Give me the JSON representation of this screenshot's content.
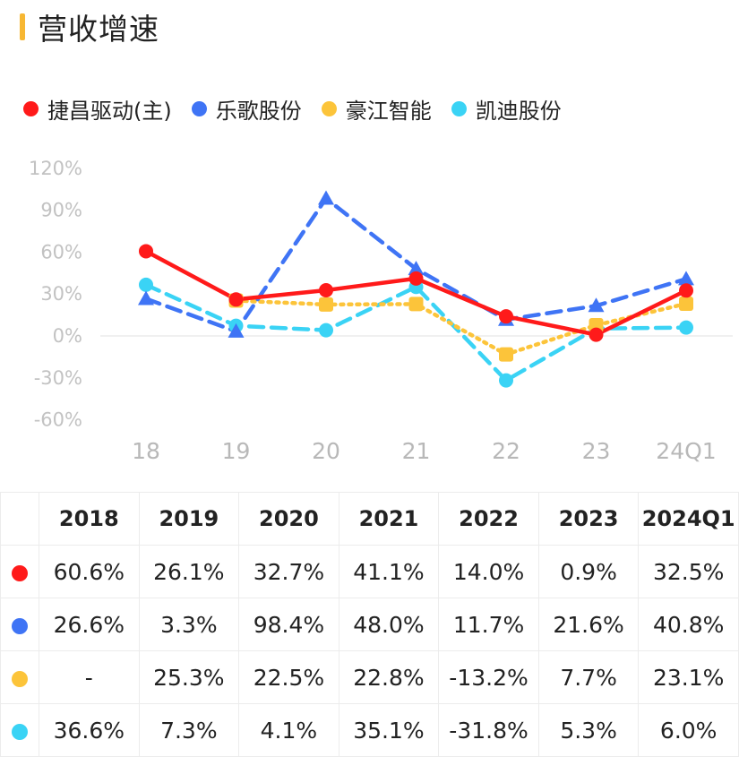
{
  "header": {
    "title": "营收增速"
  },
  "colors": {
    "accent_bar": "#f7b733"
  },
  "legend": [
    {
      "label": "捷昌驱动(主)",
      "color": "#ff1a1a"
    },
    {
      "label": "乐歌股份",
      "color": "#3f74f5"
    },
    {
      "label": "豪江智能",
      "color": "#fcc43a"
    },
    {
      "label": "凯迪股份",
      "color": "#3ad3f5"
    }
  ],
  "chart_data": {
    "type": "line",
    "title": "营收增速",
    "categories": [
      "18",
      "19",
      "20",
      "21",
      "22",
      "23",
      "24Q1"
    ],
    "y_ticks": [
      "120%",
      "90%",
      "60%",
      "30%",
      "0%",
      "-30%",
      "-60%"
    ],
    "ylim": [
      -60,
      120
    ],
    "grid": false,
    "legend_position": "top",
    "series": [
      {
        "name": "捷昌驱动(主)",
        "color": "#ff1a1a",
        "line": "solid",
        "marker": "circle",
        "values": [
          60.6,
          26.1,
          32.7,
          41.1,
          14.0,
          0.9,
          32.5
        ]
      },
      {
        "name": "乐歌股份",
        "color": "#3f74f5",
        "line": "dashed",
        "marker": "triangle",
        "values": [
          26.6,
          3.3,
          98.4,
          48.0,
          11.7,
          21.6,
          40.8
        ]
      },
      {
        "name": "豪江智能",
        "color": "#fcc43a",
        "line": "dotted",
        "marker": "square",
        "values": [
          null,
          25.3,
          22.5,
          22.8,
          -13.2,
          7.7,
          23.1
        ]
      },
      {
        "name": "凯迪股份",
        "color": "#3ad3f5",
        "line": "dashed",
        "marker": "circle",
        "values": [
          36.6,
          7.3,
          4.1,
          35.1,
          -31.8,
          5.3,
          6.0
        ]
      }
    ]
  },
  "table": {
    "headers": [
      "2018",
      "2019",
      "2020",
      "2021",
      "2022",
      "2023",
      "2024Q1"
    ],
    "rows": [
      {
        "color": "#ff1a1a",
        "cells": [
          "60.6%",
          "26.1%",
          "32.7%",
          "41.1%",
          "14.0%",
          "0.9%",
          "32.5%"
        ]
      },
      {
        "color": "#3f74f5",
        "cells": [
          "26.6%",
          "3.3%",
          "98.4%",
          "48.0%",
          "11.7%",
          "21.6%",
          "40.8%"
        ]
      },
      {
        "color": "#fcc43a",
        "cells": [
          "-",
          "25.3%",
          "22.5%",
          "22.8%",
          "-13.2%",
          "7.7%",
          "23.1%"
        ]
      },
      {
        "color": "#3ad3f5",
        "cells": [
          "36.6%",
          "7.3%",
          "4.1%",
          "35.1%",
          "-31.8%",
          "5.3%",
          "6.0%"
        ]
      }
    ]
  }
}
